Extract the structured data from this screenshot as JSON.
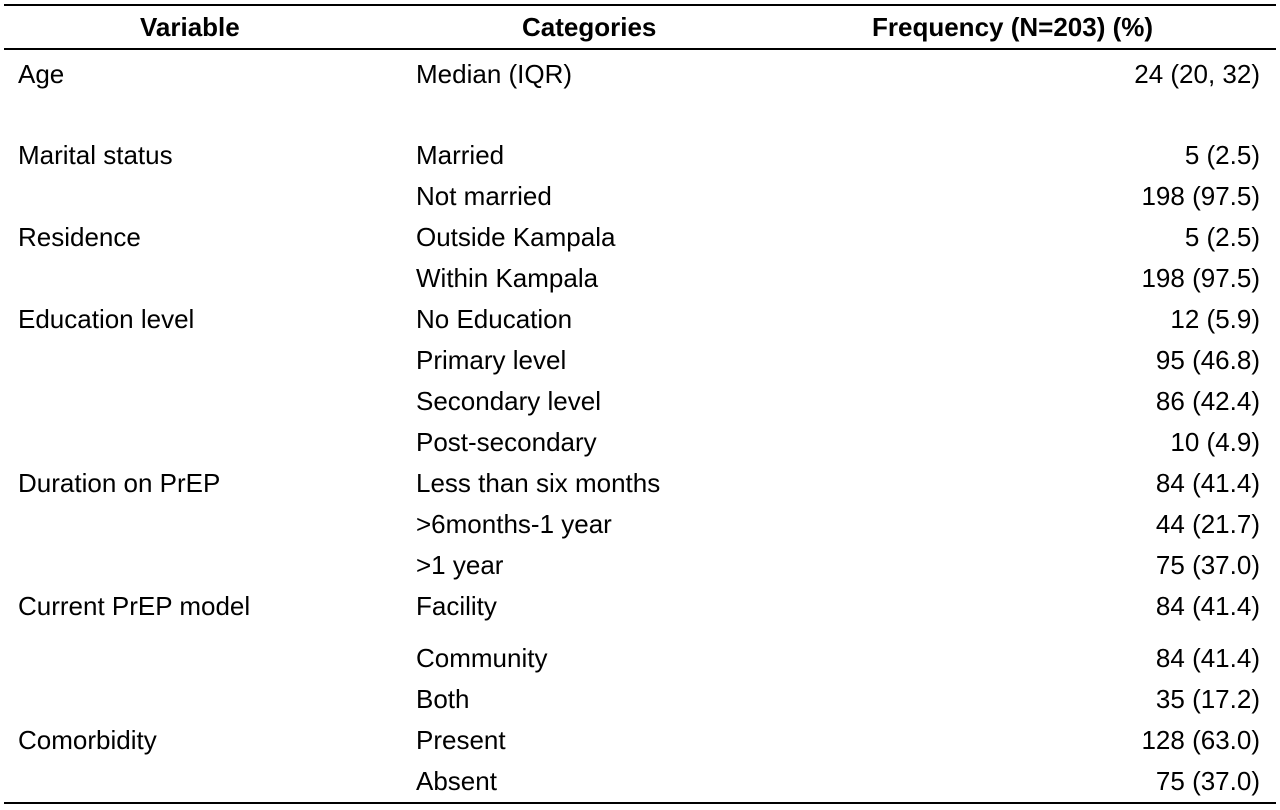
{
  "table": {
    "headers": {
      "variable": "Variable",
      "categories": "Categories",
      "frequency": "Frequency (N=203) (%)"
    },
    "rows": [
      {
        "variable": "Age",
        "category": "Median (IQR)",
        "frequency": "24 (20, 32)"
      },
      {
        "variable": "Marital status",
        "category": "Married",
        "frequency": "5 (2.5)"
      },
      {
        "variable": "",
        "category": "Not married",
        "frequency": "198 (97.5)"
      },
      {
        "variable": "Residence",
        "category": "Outside Kampala",
        "frequency": "5 (2.5)"
      },
      {
        "variable": "",
        "category": "Within Kampala",
        "frequency": "198 (97.5)"
      },
      {
        "variable": "Education level",
        "category": "No Education",
        "frequency": "12 (5.9)"
      },
      {
        "variable": "",
        "category": "Primary level",
        "frequency": "95 (46.8)"
      },
      {
        "variable": "",
        "category": "Secondary level",
        "frequency": "86 (42.4)"
      },
      {
        "variable": "",
        "category": "Post-secondary",
        "frequency": "10 (4.9)"
      },
      {
        "variable": "Duration on PrEP",
        "category": "Less than six months",
        "frequency": "84 (41.4)"
      },
      {
        "variable": "",
        "category": ">6months-1 year",
        "frequency": "44 (21.7)"
      },
      {
        "variable": "",
        "category": ">1 year",
        "frequency": "75 (37.0)"
      },
      {
        "variable": "Current PrEP model",
        "category": "Facility",
        "frequency": "84 (41.4)"
      },
      {
        "variable": "",
        "category": "Community",
        "frequency": "84 (41.4)"
      },
      {
        "variable": "",
        "category": "Both",
        "frequency": "35 (17.2)"
      },
      {
        "variable": "Comorbidity",
        "category": "Present",
        "frequency": "128 (63.0)"
      },
      {
        "variable": "",
        "category": "Absent",
        "frequency": "75 (37.0)"
      }
    ]
  }
}
